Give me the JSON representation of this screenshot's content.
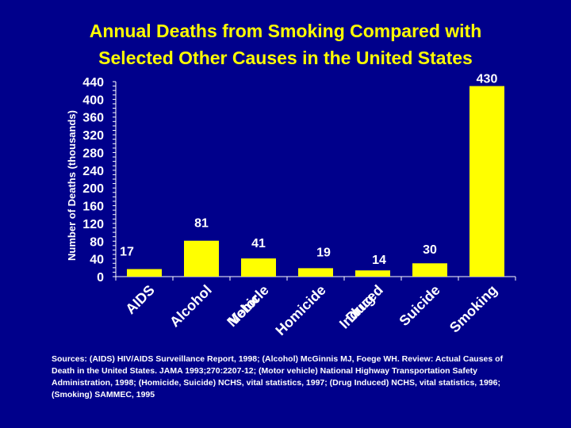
{
  "colors": {
    "background": "#00008B",
    "bar": "#FFFF00",
    "text": "#FFFFFF",
    "title": "#FFFF00"
  },
  "title_lines": [
    "Annual Deaths from Smoking Compared with",
    "Selected Other Causes in the United States"
  ],
  "source_note": "Sources: (AIDS) HIV/AIDS Surveillance Report, 1998; (Alcohol) McGinnis MJ, Foege WH. Review: Actual Causes of Death in the United States. JAMA 1993;270:2207-12; (Motor vehicle) National Highway Transportation Safety Administration, 1998; (Homicide, Suicide) NCHS, vital statistics, 1997; (Drug Induced) NCHS, vital statistics, 1996; (Smoking) SAMMEC, 1995",
  "chart_data": {
    "type": "bar",
    "title": "Annual Deaths from Smoking Compared with Selected Other Causes in the United States",
    "ylabel": "Number of Deaths (thousands)",
    "xlabel": "",
    "ylim": [
      0,
      440
    ],
    "yticks": [
      0,
      40,
      80,
      120,
      160,
      200,
      240,
      280,
      320,
      360,
      400,
      440
    ],
    "categories": [
      "AIDS",
      "Alcohol",
      "Motor Vehicle",
      "Homicide",
      "Drug Induced",
      "Suicide",
      "Smoking"
    ],
    "category_labels": [
      [
        "AIDS"
      ],
      [
        "Alcohol"
      ],
      [
        "Motor",
        "Vehicle"
      ],
      [
        "Homicide"
      ],
      [
        "Drug",
        "Induced"
      ],
      [
        "Suicide"
      ],
      [
        "Smoking"
      ]
    ],
    "values": [
      17,
      81,
      41,
      19,
      14,
      30,
      430
    ],
    "value_labels": [
      "17",
      "81",
      "41",
      "19",
      "14",
      "30",
      "430"
    ],
    "grid": false,
    "legend": "none"
  }
}
